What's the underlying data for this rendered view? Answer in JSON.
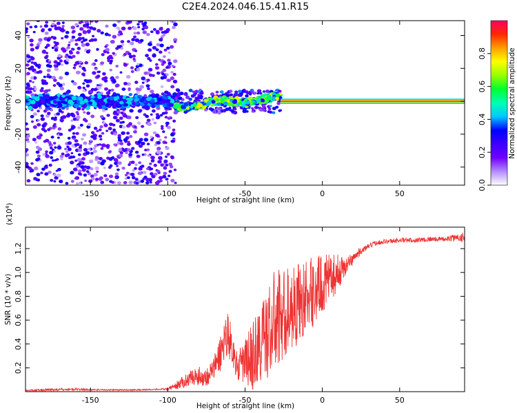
{
  "title": "C2E4.2024.046.15.41.R15",
  "chart_data": [
    {
      "type": "heatmap",
      "xlabel": "Height of straight line (km)",
      "ylabel": "Frequency (Hz)",
      "xlim": [
        -192,
        92
      ],
      "ylim": [
        -51,
        49
      ],
      "xticks": [
        -150,
        -100,
        -50,
        0,
        50
      ],
      "yticks": [
        -40,
        -20,
        0,
        20,
        40
      ],
      "colorbar": {
        "label": "Normalized spectral amplitude",
        "range": [
          0.0,
          1.0
        ],
        "ticks": [
          0.0,
          0.2,
          0.4,
          0.6,
          0.8
        ],
        "tick_labels": [
          "0.0",
          "0.2",
          "0.4",
          "0.6",
          "0.8"
        ],
        "colormap_stops": [
          "#ffffff",
          "#b38cff",
          "#7000ff",
          "#3c00ff",
          "#0000ff",
          "#00c8ff",
          "#00ffb4",
          "#00ff32",
          "#96ff00",
          "#ffff00",
          "#ffa000",
          "#ff2800",
          "#ff0064"
        ]
      },
      "regions": [
        {
          "x_range": [
            -192,
            -95
          ],
          "description_values": {
            "scatter_half_width_hz": 50,
            "core_half_width_hz": 5,
            "core_amplitude": 0.3
          }
        },
        {
          "x_range": [
            -95,
            -27
          ],
          "description_values": {
            "scatter_half_width_hz": 7,
            "core_half_width_hz": 4,
            "core_amplitude": 0.5
          }
        },
        {
          "x_range": [
            -27,
            92
          ],
          "description_values": {
            "line_frequency_hz": 0,
            "line_amplitude": 0.9
          }
        }
      ],
      "grid": false
    },
    {
      "type": "line",
      "xlabel": "Height of straight line (km)",
      "ylabel": "SNR (10 * v/v)",
      "multiplier_label": "(x10",
      "multiplier_exp": "4",
      "multiplier_close": ")",
      "xlim": [
        -192,
        92
      ],
      "ylim": [
        0,
        1.38
      ],
      "xticks": [
        -150,
        -100,
        -50,
        0,
        50
      ],
      "yticks": [
        0.2,
        0.4,
        0.6,
        0.8,
        1.0,
        1.2
      ],
      "ytick_labels": [
        "0.2",
        "0.4",
        "0.6",
        "0.8",
        "1.0",
        "1.2"
      ],
      "color": "#ee3333",
      "series": [
        {
          "x": [
            -192,
            -180,
            -160,
            -140,
            -120,
            -105,
            -100,
            -95,
            -90,
            -85,
            -80,
            -75,
            -70,
            -65,
            -62,
            -60,
            -57,
            -55,
            -50,
            -45,
            -40,
            -35,
            -30,
            -25,
            -20,
            -15,
            -10,
            -5,
            0,
            5,
            10,
            15,
            20,
            25,
            30,
            35,
            40,
            50,
            60,
            70,
            80,
            85,
            92
          ],
          "y": [
            0.01,
            0.015,
            0.02,
            0.015,
            0.015,
            0.02,
            0.02,
            0.05,
            0.08,
            0.12,
            0.13,
            0.12,
            0.2,
            0.35,
            0.5,
            0.45,
            0.3,
            0.2,
            0.25,
            0.3,
            0.4,
            0.5,
            0.6,
            0.65,
            0.7,
            0.75,
            0.8,
            0.85,
            0.9,
            0.95,
            1.0,
            1.05,
            1.12,
            1.18,
            1.22,
            1.25,
            1.26,
            1.27,
            1.27,
            1.28,
            1.28,
            1.29,
            1.3
          ],
          "noise_amplitude": [
            0.005,
            0.01,
            0.01,
            0.005,
            0.005,
            0.005,
            0.01,
            0.03,
            0.05,
            0.06,
            0.08,
            0.08,
            0.1,
            0.18,
            0.2,
            0.18,
            0.12,
            0.12,
            0.2,
            0.3,
            0.35,
            0.4,
            0.45,
            0.4,
            0.35,
            0.35,
            0.3,
            0.3,
            0.25,
            0.2,
            0.15,
            0.08,
            0.05,
            0.03,
            0.02,
            0.02,
            0.02,
            0.02,
            0.02,
            0.02,
            0.02,
            0.03,
            0.05
          ]
        }
      ],
      "grid": false
    }
  ]
}
